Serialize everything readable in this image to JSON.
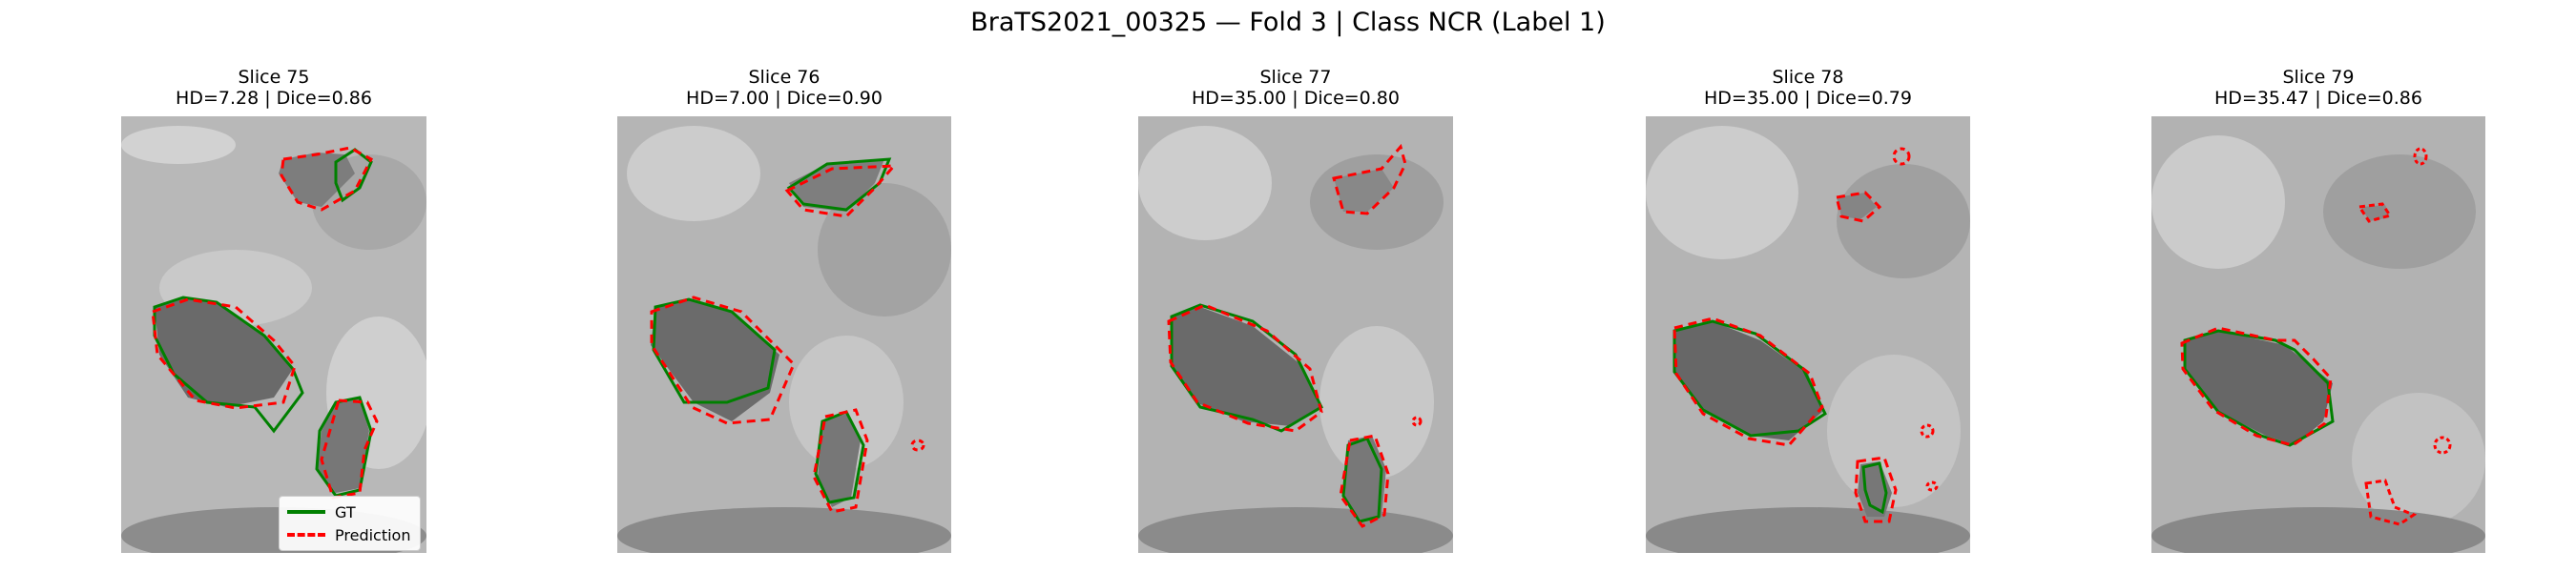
{
  "figure": {
    "title": "BraTS2021_00325 — Fold 3 | Class NCR (Label 1)"
  },
  "legend": {
    "items": [
      {
        "label": "GT",
        "color": "#008000",
        "style": "solid"
      },
      {
        "label": "Prediction",
        "color": "#ff0000",
        "style": "dashed"
      }
    ]
  },
  "panels": [
    {
      "slice_label": "Slice 75",
      "metrics_label": "HD=7.28 | Dice=0.86",
      "slice": 75,
      "hd": 7.28,
      "dice": 0.86
    },
    {
      "slice_label": "Slice 76",
      "metrics_label": "HD=7.00 | Dice=0.90",
      "slice": 76,
      "hd": 7.0,
      "dice": 0.9
    },
    {
      "slice_label": "Slice 77",
      "metrics_label": "HD=35.00 | Dice=0.80",
      "slice": 77,
      "hd": 35.0,
      "dice": 0.8
    },
    {
      "slice_label": "Slice 78",
      "metrics_label": "HD=35.00 | Dice=0.79",
      "slice": 78,
      "hd": 35.0,
      "dice": 0.79
    },
    {
      "slice_label": "Slice 79",
      "metrics_label": "HD=35.47 | Dice=0.86",
      "slice": 79,
      "hd": 35.47,
      "dice": 0.86
    }
  ],
  "colors": {
    "ground_truth": "#008000",
    "prediction": "#ff0000",
    "background_tissue": "#b4b4b4",
    "tumor_region": "#5a5a5a"
  }
}
